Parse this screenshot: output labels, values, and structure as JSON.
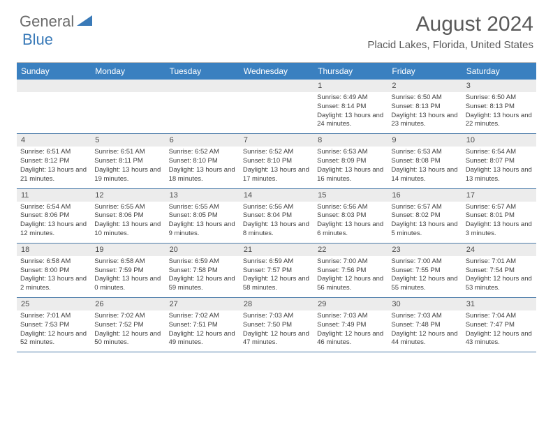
{
  "logo": {
    "text_general": "General",
    "text_blue": "Blue",
    "general_color": "#6b6b6b",
    "blue_color": "#3a7ab8",
    "shape_color": "#3a7ab8"
  },
  "title": "August 2024",
  "location": "Placid Lakes, Florida, United States",
  "colors": {
    "header_bar": "#3a80c0",
    "header_text": "#ffffff",
    "daynum_bg": "#ececec",
    "text": "#3d3d3d",
    "divider": "#4a7aa8",
    "top_rule": "#bdbdbd"
  },
  "days_of_week": [
    "Sunday",
    "Monday",
    "Tuesday",
    "Wednesday",
    "Thursday",
    "Friday",
    "Saturday"
  ],
  "weeks": [
    [
      {
        "num": "",
        "sunrise": "",
        "sunset": "",
        "daylight": ""
      },
      {
        "num": "",
        "sunrise": "",
        "sunset": "",
        "daylight": ""
      },
      {
        "num": "",
        "sunrise": "",
        "sunset": "",
        "daylight": ""
      },
      {
        "num": "",
        "sunrise": "",
        "sunset": "",
        "daylight": ""
      },
      {
        "num": "1",
        "sunrise": "Sunrise: 6:49 AM",
        "sunset": "Sunset: 8:14 PM",
        "daylight": "Daylight: 13 hours and 24 minutes."
      },
      {
        "num": "2",
        "sunrise": "Sunrise: 6:50 AM",
        "sunset": "Sunset: 8:13 PM",
        "daylight": "Daylight: 13 hours and 23 minutes."
      },
      {
        "num": "3",
        "sunrise": "Sunrise: 6:50 AM",
        "sunset": "Sunset: 8:13 PM",
        "daylight": "Daylight: 13 hours and 22 minutes."
      }
    ],
    [
      {
        "num": "4",
        "sunrise": "Sunrise: 6:51 AM",
        "sunset": "Sunset: 8:12 PM",
        "daylight": "Daylight: 13 hours and 21 minutes."
      },
      {
        "num": "5",
        "sunrise": "Sunrise: 6:51 AM",
        "sunset": "Sunset: 8:11 PM",
        "daylight": "Daylight: 13 hours and 19 minutes."
      },
      {
        "num": "6",
        "sunrise": "Sunrise: 6:52 AM",
        "sunset": "Sunset: 8:10 PM",
        "daylight": "Daylight: 13 hours and 18 minutes."
      },
      {
        "num": "7",
        "sunrise": "Sunrise: 6:52 AM",
        "sunset": "Sunset: 8:10 PM",
        "daylight": "Daylight: 13 hours and 17 minutes."
      },
      {
        "num": "8",
        "sunrise": "Sunrise: 6:53 AM",
        "sunset": "Sunset: 8:09 PM",
        "daylight": "Daylight: 13 hours and 16 minutes."
      },
      {
        "num": "9",
        "sunrise": "Sunrise: 6:53 AM",
        "sunset": "Sunset: 8:08 PM",
        "daylight": "Daylight: 13 hours and 14 minutes."
      },
      {
        "num": "10",
        "sunrise": "Sunrise: 6:54 AM",
        "sunset": "Sunset: 8:07 PM",
        "daylight": "Daylight: 13 hours and 13 minutes."
      }
    ],
    [
      {
        "num": "11",
        "sunrise": "Sunrise: 6:54 AM",
        "sunset": "Sunset: 8:06 PM",
        "daylight": "Daylight: 13 hours and 12 minutes."
      },
      {
        "num": "12",
        "sunrise": "Sunrise: 6:55 AM",
        "sunset": "Sunset: 8:06 PM",
        "daylight": "Daylight: 13 hours and 10 minutes."
      },
      {
        "num": "13",
        "sunrise": "Sunrise: 6:55 AM",
        "sunset": "Sunset: 8:05 PM",
        "daylight": "Daylight: 13 hours and 9 minutes."
      },
      {
        "num": "14",
        "sunrise": "Sunrise: 6:56 AM",
        "sunset": "Sunset: 8:04 PM",
        "daylight": "Daylight: 13 hours and 8 minutes."
      },
      {
        "num": "15",
        "sunrise": "Sunrise: 6:56 AM",
        "sunset": "Sunset: 8:03 PM",
        "daylight": "Daylight: 13 hours and 6 minutes."
      },
      {
        "num": "16",
        "sunrise": "Sunrise: 6:57 AM",
        "sunset": "Sunset: 8:02 PM",
        "daylight": "Daylight: 13 hours and 5 minutes."
      },
      {
        "num": "17",
        "sunrise": "Sunrise: 6:57 AM",
        "sunset": "Sunset: 8:01 PM",
        "daylight": "Daylight: 13 hours and 3 minutes."
      }
    ],
    [
      {
        "num": "18",
        "sunrise": "Sunrise: 6:58 AM",
        "sunset": "Sunset: 8:00 PM",
        "daylight": "Daylight: 13 hours and 2 minutes."
      },
      {
        "num": "19",
        "sunrise": "Sunrise: 6:58 AM",
        "sunset": "Sunset: 7:59 PM",
        "daylight": "Daylight: 13 hours and 0 minutes."
      },
      {
        "num": "20",
        "sunrise": "Sunrise: 6:59 AM",
        "sunset": "Sunset: 7:58 PM",
        "daylight": "Daylight: 12 hours and 59 minutes."
      },
      {
        "num": "21",
        "sunrise": "Sunrise: 6:59 AM",
        "sunset": "Sunset: 7:57 PM",
        "daylight": "Daylight: 12 hours and 58 minutes."
      },
      {
        "num": "22",
        "sunrise": "Sunrise: 7:00 AM",
        "sunset": "Sunset: 7:56 PM",
        "daylight": "Daylight: 12 hours and 56 minutes."
      },
      {
        "num": "23",
        "sunrise": "Sunrise: 7:00 AM",
        "sunset": "Sunset: 7:55 PM",
        "daylight": "Daylight: 12 hours and 55 minutes."
      },
      {
        "num": "24",
        "sunrise": "Sunrise: 7:01 AM",
        "sunset": "Sunset: 7:54 PM",
        "daylight": "Daylight: 12 hours and 53 minutes."
      }
    ],
    [
      {
        "num": "25",
        "sunrise": "Sunrise: 7:01 AM",
        "sunset": "Sunset: 7:53 PM",
        "daylight": "Daylight: 12 hours and 52 minutes."
      },
      {
        "num": "26",
        "sunrise": "Sunrise: 7:02 AM",
        "sunset": "Sunset: 7:52 PM",
        "daylight": "Daylight: 12 hours and 50 minutes."
      },
      {
        "num": "27",
        "sunrise": "Sunrise: 7:02 AM",
        "sunset": "Sunset: 7:51 PM",
        "daylight": "Daylight: 12 hours and 49 minutes."
      },
      {
        "num": "28",
        "sunrise": "Sunrise: 7:03 AM",
        "sunset": "Sunset: 7:50 PM",
        "daylight": "Daylight: 12 hours and 47 minutes."
      },
      {
        "num": "29",
        "sunrise": "Sunrise: 7:03 AM",
        "sunset": "Sunset: 7:49 PM",
        "daylight": "Daylight: 12 hours and 46 minutes."
      },
      {
        "num": "30",
        "sunrise": "Sunrise: 7:03 AM",
        "sunset": "Sunset: 7:48 PM",
        "daylight": "Daylight: 12 hours and 44 minutes."
      },
      {
        "num": "31",
        "sunrise": "Sunrise: 7:04 AM",
        "sunset": "Sunset: 7:47 PM",
        "daylight": "Daylight: 12 hours and 43 minutes."
      }
    ]
  ]
}
